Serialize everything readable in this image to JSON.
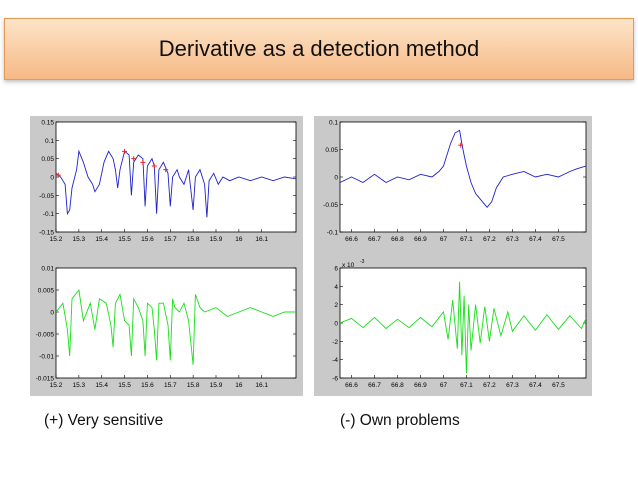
{
  "slide": {
    "title": "Derivative as a detection method",
    "left_caption": "(+) Very sensitive",
    "right_caption": "(-) Own problems"
  },
  "colors": {
    "signal": "#2020cc",
    "derivative": "#18e018",
    "marker": "#ee2222",
    "panel_bg": "#c9c9c9",
    "header_top": "#fde4c8",
    "header_bottom": "#f6b985"
  },
  "chart_data": [
    {
      "id": "left-signal",
      "type": "line",
      "xlim": [
        15.2,
        16.25
      ],
      "ylim": [
        -0.15,
        0.15
      ],
      "xticks": [
        "15.2",
        "15.3",
        "15.4",
        "15.5",
        "15.6",
        "15.7",
        "15.8",
        "15.9",
        "16",
        "16.1"
      ],
      "yticks": [
        "0.15",
        "0.1",
        "0.05",
        "0",
        "-0.05",
        "-0.1",
        "-0.15"
      ],
      "series": [
        {
          "name": "signal",
          "color": "#2020cc",
          "points": [
            [
              15.2,
              0.01
            ],
            [
              15.22,
              0.0
            ],
            [
              15.24,
              -0.02
            ],
            [
              15.25,
              -0.1
            ],
            [
              15.26,
              -0.09
            ],
            [
              15.27,
              -0.03
            ],
            [
              15.29,
              0.02
            ],
            [
              15.3,
              0.07
            ],
            [
              15.32,
              0.04
            ],
            [
              15.34,
              0.0
            ],
            [
              15.36,
              -0.02
            ],
            [
              15.37,
              -0.04
            ],
            [
              15.39,
              -0.02
            ],
            [
              15.41,
              0.04
            ],
            [
              15.43,
              0.07
            ],
            [
              15.45,
              0.05
            ],
            [
              15.46,
              0.02
            ],
            [
              15.47,
              -0.03
            ],
            [
              15.48,
              0.02
            ],
            [
              15.5,
              0.07
            ],
            [
              15.52,
              0.06
            ],
            [
              15.53,
              -0.05
            ],
            [
              15.54,
              0.04
            ],
            [
              15.56,
              0.06
            ],
            [
              15.58,
              0.05
            ],
            [
              15.59,
              -0.08
            ],
            [
              15.6,
              0.03
            ],
            [
              15.62,
              0.05
            ],
            [
              15.63,
              0.03
            ],
            [
              15.64,
              -0.1
            ],
            [
              15.65,
              0.02
            ],
            [
              15.67,
              0.04
            ],
            [
              15.69,
              0.01
            ],
            [
              15.7,
              -0.08
            ],
            [
              15.71,
              0.0
            ],
            [
              15.73,
              0.02
            ],
            [
              15.74,
              0.0
            ],
            [
              15.76,
              -0.02
            ],
            [
              15.78,
              0.02
            ],
            [
              15.8,
              -0.09
            ],
            [
              15.81,
              0.0
            ],
            [
              15.83,
              0.02
            ],
            [
              15.85,
              -0.02
            ],
            [
              15.86,
              -0.11
            ],
            [
              15.87,
              -0.01
            ],
            [
              15.89,
              0.01
            ],
            [
              15.91,
              -0.02
            ],
            [
              15.93,
              0.0
            ],
            [
              15.96,
              -0.01
            ],
            [
              16.0,
              0.0
            ],
            [
              16.05,
              -0.01
            ],
            [
              16.1,
              0.0
            ],
            [
              16.15,
              -0.01
            ],
            [
              16.2,
              0.0
            ],
            [
              16.25,
              -0.005
            ]
          ]
        }
      ],
      "markers": [
        [
          15.21,
          0.005
        ],
        [
          15.5,
          0.07
        ],
        [
          15.54,
          0.05
        ],
        [
          15.58,
          0.04
        ],
        [
          15.63,
          0.03
        ],
        [
          15.68,
          0.02
        ]
      ]
    },
    {
      "id": "right-signal",
      "type": "line",
      "xlim": [
        66.55,
        67.62
      ],
      "ylim": [
        -0.1,
        0.1
      ],
      "xticks": [
        "66.6",
        "66.7",
        "66.8",
        "66.9",
        "67",
        "67.1",
        "67.2",
        "67.3",
        "67.4",
        "67.5"
      ],
      "yticks": [
        "0.1",
        "0.05",
        "0",
        "-0.05",
        "-0.1"
      ],
      "series": [
        {
          "name": "signal",
          "color": "#2020cc",
          "points": [
            [
              66.55,
              -0.01
            ],
            [
              66.6,
              0.0
            ],
            [
              66.65,
              -0.01
            ],
            [
              66.7,
              0.005
            ],
            [
              66.75,
              -0.01
            ],
            [
              66.8,
              0.0
            ],
            [
              66.85,
              -0.005
            ],
            [
              66.9,
              0.005
            ],
            [
              66.95,
              0.0
            ],
            [
              66.98,
              0.01
            ],
            [
              67.0,
              0.02
            ],
            [
              67.03,
              0.06
            ],
            [
              67.05,
              0.08
            ],
            [
              67.07,
              0.085
            ],
            [
              67.08,
              0.06
            ],
            [
              67.09,
              0.04
            ],
            [
              67.1,
              0.02
            ],
            [
              67.12,
              -0.01
            ],
            [
              67.14,
              -0.03
            ],
            [
              67.17,
              -0.045
            ],
            [
              67.19,
              -0.055
            ],
            [
              67.21,
              -0.045
            ],
            [
              67.23,
              -0.02
            ],
            [
              67.26,
              0.0
            ],
            [
              67.3,
              0.005
            ],
            [
              67.35,
              0.01
            ],
            [
              67.4,
              0.0
            ],
            [
              67.45,
              0.005
            ],
            [
              67.5,
              0.0
            ],
            [
              67.55,
              0.01
            ],
            [
              67.58,
              0.015
            ],
            [
              67.62,
              0.02
            ]
          ]
        }
      ],
      "markers": [
        [
          67.075,
          0.058
        ]
      ]
    },
    {
      "id": "left-derivative",
      "type": "line",
      "xlim": [
        15.2,
        16.25
      ],
      "ylim": [
        -0.015,
        0.01
      ],
      "xticks": [
        "15.2",
        "15.3",
        "15.4",
        "15.5",
        "15.6",
        "15.7",
        "15.8",
        "15.9",
        "16",
        "16.1"
      ],
      "yticks": [
        "0.01",
        "0.005",
        "0",
        "-0.005",
        "-0.01",
        "-0.015"
      ],
      "series": [
        {
          "name": "derivative",
          "color": "#18e018",
          "points": [
            [
              15.2,
              0.0
            ],
            [
              15.23,
              0.002
            ],
            [
              15.25,
              -0.004
            ],
            [
              15.26,
              -0.01
            ],
            [
              15.27,
              0.003
            ],
            [
              15.3,
              0.005
            ],
            [
              15.32,
              -0.002
            ],
            [
              15.35,
              0.002
            ],
            [
              15.37,
              -0.004
            ],
            [
              15.39,
              0.003
            ],
            [
              15.42,
              0.002
            ],
            [
              15.44,
              -0.003
            ],
            [
              15.45,
              -0.008
            ],
            [
              15.46,
              0.002
            ],
            [
              15.48,
              0.004
            ],
            [
              15.5,
              -0.002
            ],
            [
              15.52,
              -0.003
            ],
            [
              15.53,
              -0.01
            ],
            [
              15.54,
              0.003
            ],
            [
              15.56,
              0.001
            ],
            [
              15.58,
              -0.002
            ],
            [
              15.59,
              -0.01
            ],
            [
              15.6,
              0.002
            ],
            [
              15.62,
              0.001
            ],
            [
              15.63,
              -0.004
            ],
            [
              15.64,
              -0.011
            ],
            [
              15.65,
              0.002
            ],
            [
              15.67,
              0.002
            ],
            [
              15.69,
              -0.003
            ],
            [
              15.7,
              -0.011
            ],
            [
              15.71,
              0.003
            ],
            [
              15.72,
              0.001
            ],
            [
              15.74,
              0.0
            ],
            [
              15.76,
              0.002
            ],
            [
              15.78,
              -0.002
            ],
            [
              15.8,
              -0.012
            ],
            [
              15.81,
              0.004
            ],
            [
              15.83,
              0.001
            ],
            [
              15.85,
              0.0
            ],
            [
              15.9,
              0.001
            ],
            [
              15.95,
              -0.001
            ],
            [
              16.0,
              0.0
            ],
            [
              16.05,
              0.001
            ],
            [
              16.1,
              0.0
            ],
            [
              16.15,
              -0.001
            ],
            [
              16.2,
              0.0
            ],
            [
              16.25,
              0.0
            ]
          ]
        }
      ]
    },
    {
      "id": "right-derivative",
      "type": "line",
      "xlim": [
        66.55,
        67.62
      ],
      "ylim": [
        -6,
        6
      ],
      "y_exponent_label": "x 10",
      "y_exponent_power": "-3",
      "xticks": [
        "66.6",
        "66.7",
        "66.8",
        "66.9",
        "67",
        "67.1",
        "67.2",
        "67.3",
        "67.4",
        "67.5"
      ],
      "yticks": [
        "6",
        "4",
        "2",
        "0",
        "-2",
        "-4",
        "-6"
      ],
      "series": [
        {
          "name": "derivative",
          "color": "#18e018",
          "points": [
            [
              66.55,
              0.0
            ],
            [
              66.6,
              0.5
            ],
            [
              66.65,
              -0.5
            ],
            [
              66.7,
              0.6
            ],
            [
              66.75,
              -0.6
            ],
            [
              66.8,
              0.4
            ],
            [
              66.85,
              -0.5
            ],
            [
              66.9,
              0.6
            ],
            [
              66.95,
              -0.4
            ],
            [
              67.0,
              1.2
            ],
            [
              67.02,
              -1.8
            ],
            [
              67.04,
              2.5
            ],
            [
              67.06,
              -2.8
            ],
            [
              67.07,
              4.5
            ],
            [
              67.08,
              -3.5
            ],
            [
              67.09,
              3.0
            ],
            [
              67.1,
              -5.5
            ],
            [
              67.11,
              2.0
            ],
            [
              67.12,
              -3.0
            ],
            [
              67.14,
              2.0
            ],
            [
              67.16,
              -2.2
            ],
            [
              67.18,
              1.8
            ],
            [
              67.2,
              -2.0
            ],
            [
              67.22,
              1.6
            ],
            [
              67.25,
              -1.4
            ],
            [
              67.28,
              1.2
            ],
            [
              67.3,
              -0.9
            ],
            [
              67.35,
              0.8
            ],
            [
              67.4,
              -0.8
            ],
            [
              67.45,
              0.9
            ],
            [
              67.5,
              -0.7
            ],
            [
              67.55,
              0.8
            ],
            [
              67.6,
              -0.6
            ],
            [
              67.62,
              0.5
            ]
          ]
        }
      ]
    }
  ]
}
